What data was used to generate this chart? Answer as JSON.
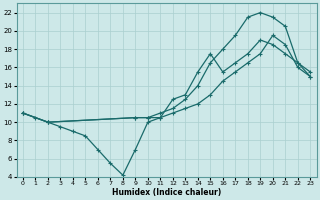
{
  "xlabel": "Humidex (Indice chaleur)",
  "bg_color": "#cde8e8",
  "grid_color": "#aacfcf",
  "line_color": "#1a6b6b",
  "xlim": [
    -0.5,
    23.5
  ],
  "ylim": [
    4,
    23
  ],
  "xticks": [
    0,
    1,
    2,
    3,
    4,
    5,
    6,
    7,
    8,
    9,
    10,
    11,
    12,
    13,
    14,
    15,
    16,
    17,
    18,
    19,
    20,
    21,
    22,
    23
  ],
  "yticks": [
    4,
    6,
    8,
    10,
    12,
    14,
    16,
    18,
    20,
    22
  ],
  "line1_x": [
    0,
    1,
    2,
    3,
    4,
    5,
    6,
    7,
    8,
    9,
    10,
    11,
    12,
    13,
    14,
    15,
    16,
    17,
    18,
    19,
    20,
    21,
    22,
    23
  ],
  "line1_y": [
    11,
    10.5,
    10,
    9.5,
    9.0,
    8.5,
    7.0,
    5.5,
    4.2,
    7.0,
    10.0,
    10.5,
    12.5,
    13.0,
    15.5,
    17.5,
    15.5,
    16.5,
    17.5,
    19.0,
    18.5,
    17.5,
    16.5,
    15.5
  ],
  "line2_x": [
    0,
    2,
    9,
    10,
    11,
    12,
    13,
    14,
    15,
    16,
    17,
    18,
    19,
    20,
    21,
    22,
    23
  ],
  "line2_y": [
    11,
    10,
    10.5,
    10.5,
    11.0,
    11.5,
    12.5,
    14.0,
    16.5,
    18.0,
    19.5,
    21.5,
    22.0,
    21.5,
    20.5,
    16.5,
    15.0
  ],
  "line3_x": [
    0,
    2,
    9,
    10,
    11,
    12,
    13,
    14,
    15,
    16,
    17,
    18,
    19,
    20,
    21,
    22,
    23
  ],
  "line3_y": [
    11,
    10,
    10.5,
    10.5,
    10.5,
    11.0,
    11.5,
    12.0,
    13.0,
    14.5,
    15.5,
    16.5,
    17.5,
    19.5,
    18.5,
    16.0,
    15.0
  ]
}
